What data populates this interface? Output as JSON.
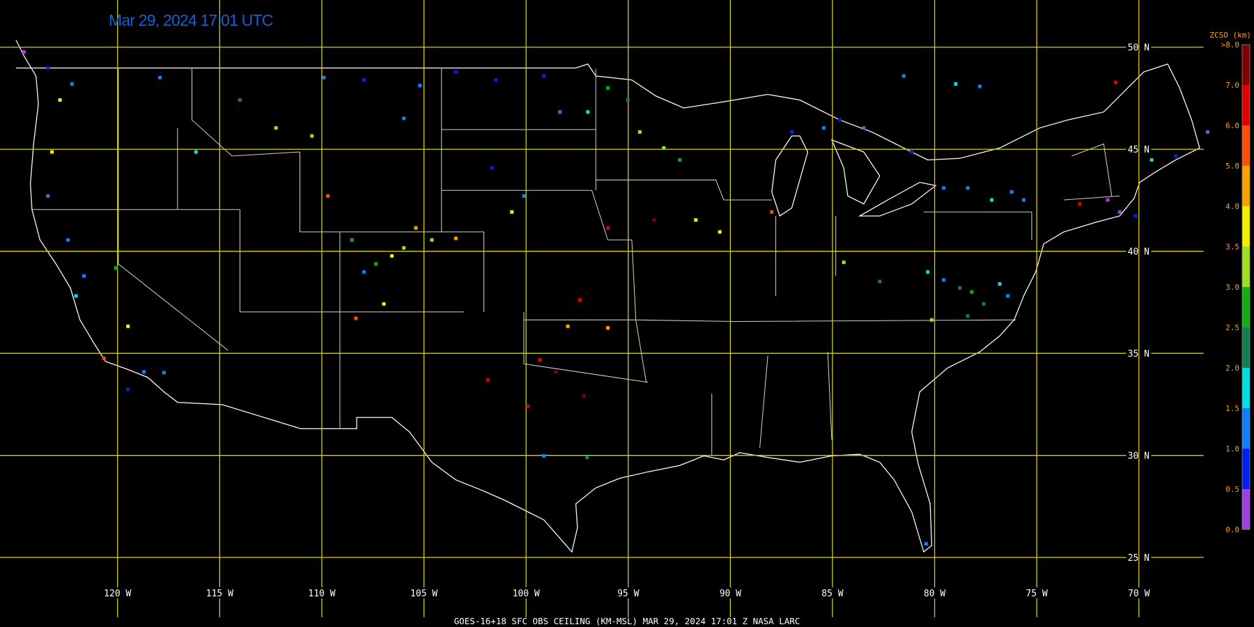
{
  "title": "Mar 29, 2024 17:01 UTC",
  "map": {
    "latitude_labels": [
      "50 N",
      "45 N",
      "40 N",
      "35 N",
      "30 N",
      "25 N"
    ],
    "longitude_labels": [
      "120 W",
      "115 W",
      "110 W",
      "105 W",
      "100 W",
      "95 W",
      "90 W",
      "85 W",
      "80 W",
      "75 W",
      "70 W"
    ]
  },
  "legend": {
    "title": "ZCSO (km)",
    "labels": [
      ">8.0",
      "7.0",
      "6.0",
      "5.0",
      "4.0",
      "3.5",
      "3.0",
      "2.5",
      "2.0",
      "1.5",
      "1.0",
      "0.5",
      "0.0"
    ]
  },
  "footer": "GOES-16+18  SFC OBS CEILING (KM-MSL)  MAR 29, 2024 17:01 Z  NASA LARC"
}
